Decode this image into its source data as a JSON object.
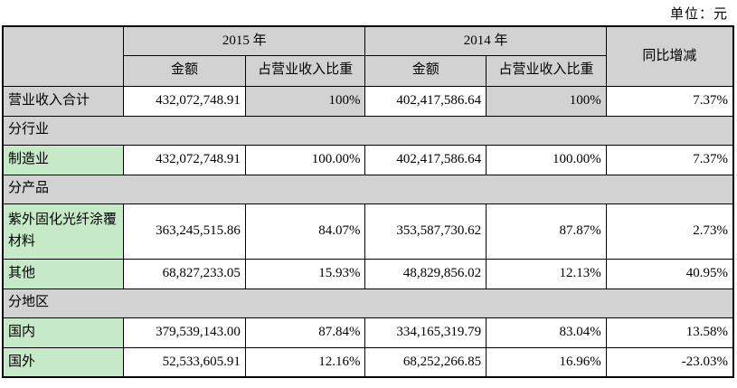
{
  "page": {
    "unit_label": "单位：元"
  },
  "colors": {
    "header_gray": "#d2d2d2",
    "label_green": "#c6e9c8",
    "border": "#000000",
    "background": "#ffffff"
  },
  "table": {
    "header": {
      "col_2015": "2015 年",
      "col_2014": "2014 年",
      "yoy": "同比增减",
      "amount_2015": "金额",
      "proportion_2015": "占营业收入比重",
      "amount_2014": "金额",
      "proportion_2014": "占营业收入比重"
    },
    "rows": [
      {
        "label": "营业收入合计",
        "amount_2015": "432,072,748.91",
        "pct_2015": "100%",
        "amount_2014": "402,417,586.64",
        "pct_2014": "100%",
        "yoy": "7.37%"
      },
      {
        "label": "分行业"
      },
      {
        "label": "制造业",
        "amount_2015": "432,072,748.91",
        "pct_2015": "100.00%",
        "amount_2014": "402,417,586.64",
        "pct_2014": "100.00%",
        "yoy": "7.37%"
      },
      {
        "label": "分产品"
      },
      {
        "label": "紫外固化光纤涂覆材料",
        "amount_2015": "363,245,515.86",
        "pct_2015": "84.07%",
        "amount_2014": "353,587,730.62",
        "pct_2014": "87.87%",
        "yoy": "2.73%"
      },
      {
        "label": "其他",
        "amount_2015": "68,827,233.05",
        "pct_2015": "15.93%",
        "amount_2014": "48,829,856.02",
        "pct_2014": "12.13%",
        "yoy": "40.95%"
      },
      {
        "label": "分地区"
      },
      {
        "label": "国内",
        "amount_2015": "379,539,143.00",
        "pct_2015": "87.84%",
        "amount_2014": "334,165,319.79",
        "pct_2014": "83.04%",
        "yoy": "13.58%"
      },
      {
        "label": "国外",
        "amount_2015": "52,533,605.91",
        "pct_2015": "12.16%",
        "amount_2014": "68,252,266.85",
        "pct_2014": "16.96%",
        "yoy": "-23.03%"
      }
    ]
  }
}
